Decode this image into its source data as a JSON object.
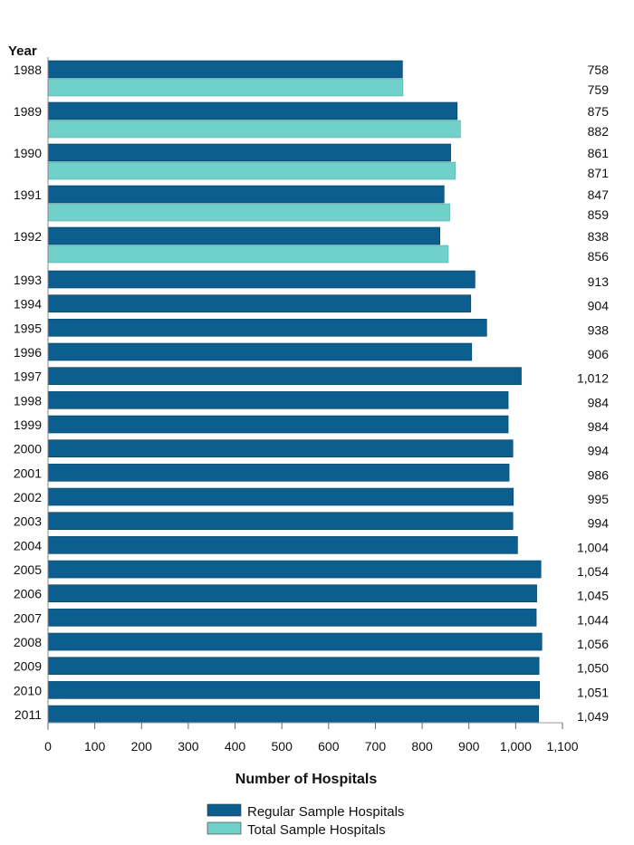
{
  "chart_data": {
    "type": "bar",
    "orientation": "horizontal",
    "ylabel": "Year",
    "xlabel": "Number of Hospitals",
    "xlim": [
      0,
      1100
    ],
    "xticks": [
      "0",
      "100",
      "200",
      "300",
      "400",
      "500",
      "600",
      "700",
      "800",
      "900",
      "1,000",
      "1,100"
    ],
    "grid": false,
    "legend_position": "bottom-center",
    "colors": {
      "regular": "#0b5e8e",
      "total": "#6fd1c9"
    },
    "series": [
      {
        "name": "Regular Sample Hospitals",
        "color": "#0b5e8e"
      },
      {
        "name": "Total Sample Hospitals",
        "color": "#6fd1c9"
      }
    ],
    "rows": [
      {
        "year": "1988",
        "regular": 758,
        "regular_label": "758",
        "total": 759,
        "total_label": "759"
      },
      {
        "year": "1989",
        "regular": 875,
        "regular_label": "875",
        "total": 882,
        "total_label": "882"
      },
      {
        "year": "1990",
        "regular": 861,
        "regular_label": "861",
        "total": 871,
        "total_label": "871"
      },
      {
        "year": "1991",
        "regular": 847,
        "regular_label": "847",
        "total": 859,
        "total_label": "859"
      },
      {
        "year": "1992",
        "regular": 838,
        "regular_label": "838",
        "total": 856,
        "total_label": "856"
      },
      {
        "year": "1993",
        "regular": 913,
        "regular_label": "913"
      },
      {
        "year": "1994",
        "regular": 904,
        "regular_label": "904"
      },
      {
        "year": "1995",
        "regular": 938,
        "regular_label": "938"
      },
      {
        "year": "1996",
        "regular": 906,
        "regular_label": "906"
      },
      {
        "year": "1997",
        "regular": 1012,
        "regular_label": "1,012"
      },
      {
        "year": "1998",
        "regular": 984,
        "regular_label": "984"
      },
      {
        "year": "1999",
        "regular": 984,
        "regular_label": "984"
      },
      {
        "year": "2000",
        "regular": 994,
        "regular_label": "994"
      },
      {
        "year": "2001",
        "regular": 986,
        "regular_label": "986"
      },
      {
        "year": "2002",
        "regular": 995,
        "regular_label": "995"
      },
      {
        "year": "2003",
        "regular": 994,
        "regular_label": "994"
      },
      {
        "year": "2004",
        "regular": 1004,
        "regular_label": "1,004"
      },
      {
        "year": "2005",
        "regular": 1054,
        "regular_label": "1,054"
      },
      {
        "year": "2006",
        "regular": 1045,
        "regular_label": "1,045"
      },
      {
        "year": "2007",
        "regular": 1044,
        "regular_label": "1,044"
      },
      {
        "year": "2008",
        "regular": 1056,
        "regular_label": "1,056"
      },
      {
        "year": "2009",
        "regular": 1050,
        "regular_label": "1,050"
      },
      {
        "year": "2010",
        "regular": 1051,
        "regular_label": "1,051"
      },
      {
        "year": "2011",
        "regular": 1049,
        "regular_label": "1,049"
      }
    ]
  }
}
